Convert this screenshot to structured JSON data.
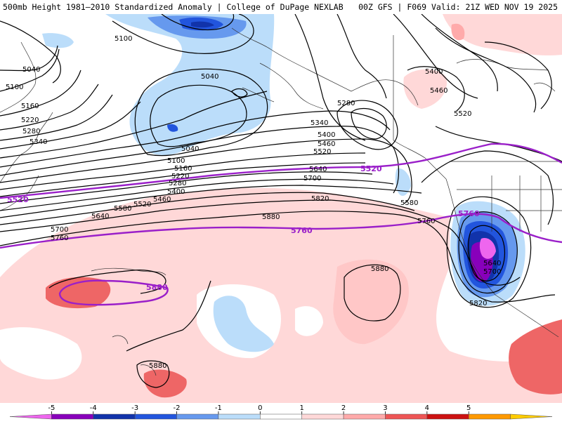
{
  "header": {
    "left_title": "500mb Height 1981–2010 Standardized Anomaly | College of DuPage NEXLAB",
    "right_title": "00Z GFS | F069 Valid: 21Z WED NOV 19 2025"
  },
  "map": {
    "height_contour_labels": [
      "5040",
      "5100",
      "5160",
      "5220",
      "5280",
      "5340",
      "5400",
      "5460",
      "5520",
      "5580",
      "5640",
      "5700",
      "5760",
      "5820",
      "5880"
    ],
    "climatology_labels": [
      "5520",
      "5760",
      "5880"
    ],
    "colors": {
      "contour": "#000000",
      "climatology": "#9a1fc9",
      "coast": "#333333"
    }
  },
  "colorbar": {
    "ticks": [
      "-5",
      "-4",
      "-3",
      "-2",
      "-1",
      "0",
      "1",
      "2",
      "3",
      "4",
      "5"
    ],
    "colors": [
      "#ee66ee",
      "#8800bb",
      "#1133aa",
      "#2255dd",
      "#6699ee",
      "#bbddfa",
      "#ffffff",
      "#ffd8d8",
      "#ffaaaa",
      "#ee5555",
      "#cc1111",
      "#ff9900",
      "#ffcc00"
    ]
  }
}
